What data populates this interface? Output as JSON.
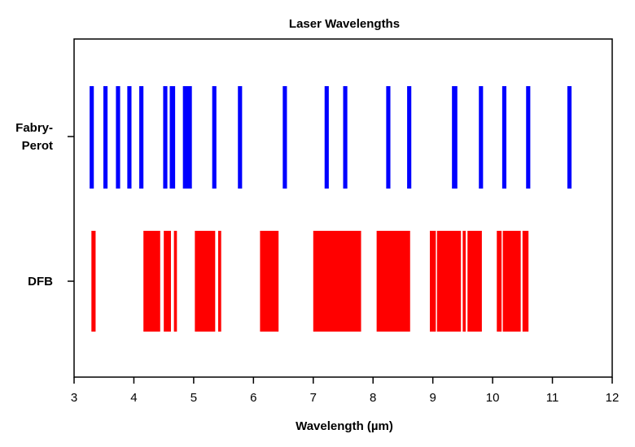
{
  "chart_data": {
    "type": "bar",
    "subtype": "spectral-line barcode",
    "title": "Laser Wavelengths",
    "xlabel": "Wavelength (µm)",
    "ylabel": "",
    "xlim": [
      3,
      12
    ],
    "xticks": [
      "3",
      "4",
      "5",
      "6",
      "7",
      "8",
      "9",
      "10",
      "11",
      "12"
    ],
    "categories": [
      "Fabry-\nPerot",
      "DFB"
    ],
    "grid": false,
    "series": [
      {
        "category": "Fabry-Perot",
        "color": "#0000ff",
        "ranges": [
          [
            3.26,
            3.33
          ],
          [
            3.49,
            3.56
          ],
          [
            3.7,
            3.77
          ],
          [
            3.89,
            3.96
          ],
          [
            4.09,
            4.16
          ],
          [
            4.49,
            4.56
          ],
          [
            4.6,
            4.69
          ],
          [
            4.82,
            4.97
          ],
          [
            5.31,
            5.38
          ],
          [
            5.74,
            5.81
          ],
          [
            6.49,
            6.56
          ],
          [
            7.19,
            7.26
          ],
          [
            7.5,
            7.57
          ],
          [
            8.22,
            8.29
          ],
          [
            8.57,
            8.64
          ],
          [
            9.32,
            9.41
          ],
          [
            9.77,
            9.84
          ],
          [
            10.16,
            10.23
          ],
          [
            10.56,
            10.63
          ],
          [
            11.25,
            11.32
          ]
        ]
      },
      {
        "category": "DFB",
        "color": "#ff0000",
        "ranges": [
          [
            3.29,
            3.36
          ],
          [
            4.16,
            4.44
          ],
          [
            4.5,
            4.62
          ],
          [
            4.67,
            4.72
          ],
          [
            5.02,
            5.36
          ],
          [
            5.41,
            5.46
          ],
          [
            6.11,
            6.42
          ],
          [
            7.0,
            7.8
          ],
          [
            8.06,
            8.62
          ],
          [
            8.95,
            9.05
          ],
          [
            9.07,
            9.47
          ],
          [
            9.5,
            9.55
          ],
          [
            9.58,
            9.82
          ],
          [
            10.07,
            10.15
          ],
          [
            10.17,
            10.47
          ],
          [
            10.5,
            10.6
          ]
        ]
      }
    ]
  }
}
